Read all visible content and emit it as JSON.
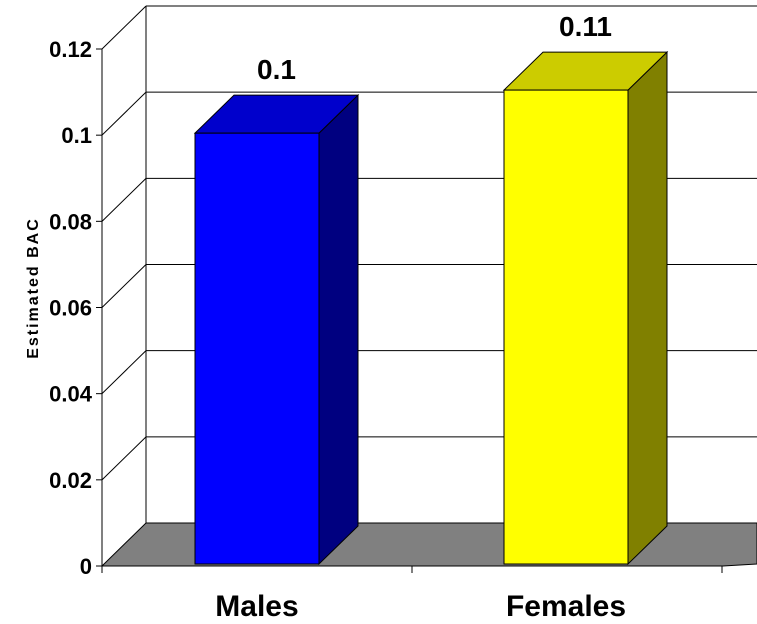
{
  "chart_data": {
    "type": "bar",
    "title": "",
    "xlabel": "",
    "ylabel": "Estimated BAC",
    "categories": [
      "Males",
      "Females"
    ],
    "values": [
      0.1,
      0.11
    ],
    "data_labels": [
      "0.1",
      "0.11"
    ],
    "ylim": [
      0,
      0.12
    ],
    "y_ticks": [
      0,
      0.02,
      0.04,
      0.06,
      0.08,
      0.1,
      0.12
    ],
    "y_tick_labels": [
      "0",
      "0.02",
      "0.04",
      "0.06",
      "0.08",
      "0.1",
      "0.12"
    ],
    "grid": true,
    "legend": "none",
    "style": "3d-column",
    "colors": {
      "Males": {
        "front": "#0000ff",
        "top": "#0000cc",
        "side": "#000080"
      },
      "Females": {
        "front": "#ffff00",
        "top": "#cccc00",
        "side": "#808000"
      },
      "floor": "#808080",
      "grid": "#000000"
    }
  }
}
